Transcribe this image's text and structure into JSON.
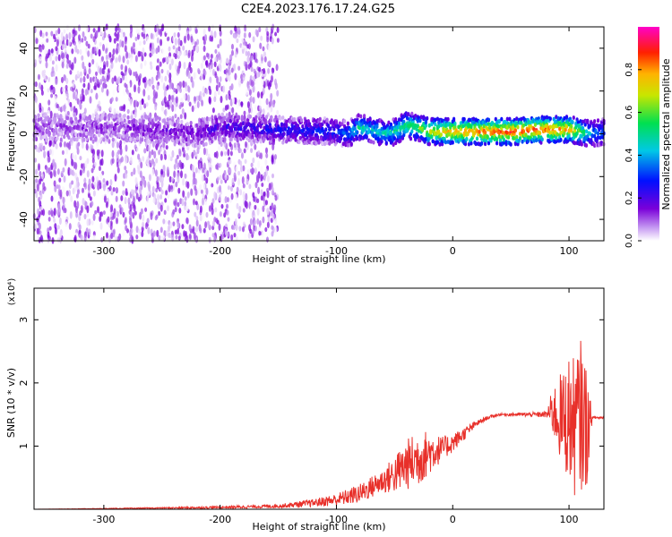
{
  "figure_title": "C2E4.2023.176.17.24.G25",
  "chart_data": [
    {
      "type": "heatmap",
      "xlabel": "Height of straight line (km)",
      "ylabel": "Frequency (Hz)",
      "xlim": [
        -360,
        130
      ],
      "ylim": [
        -50,
        50
      ],
      "x_ticks": [
        -300,
        -200,
        -100,
        0,
        100
      ],
      "y_ticks": [
        -40,
        -20,
        0,
        20,
        40
      ],
      "colorbar": {
        "label": "Normalized spectral amplitude",
        "range": [
          0,
          1
        ],
        "ticks": [
          "0.0",
          "0.2",
          "0.4",
          "0.6",
          "0.8"
        ],
        "ticks_values": [
          0,
          0.2,
          0.4,
          0.6,
          0.8
        ]
      },
      "ridge": {
        "x": [
          -360,
          -300,
          -250,
          -220,
          -200,
          -150,
          -100,
          -90,
          -80,
          -70,
          -60,
          -50,
          -40,
          -30,
          -20,
          0,
          50,
          80,
          100,
          110,
          120,
          130
        ],
        "freq": [
          3,
          3,
          2,
          0,
          3,
          2,
          1,
          0,
          3,
          2,
          0,
          1,
          4,
          3,
          1,
          1,
          1,
          2,
          2,
          1,
          0,
          1
        ],
        "amplitude": [
          0.1,
          0.12,
          0.15,
          0.15,
          0.2,
          0.25,
          0.3,
          0.35,
          0.5,
          0.45,
          0.45,
          0.5,
          0.55,
          0.6,
          0.7,
          0.8,
          0.9,
          0.88,
          0.8,
          0.6,
          0.4,
          0.35
        ]
      },
      "noise_region": [
        -360,
        -150
      ]
    },
    {
      "type": "line",
      "xlabel": "Height of straight line (km)",
      "ylabel": "SNR (10 * v/v)",
      "y_multiplier": "(x10⁴)",
      "xlim": [
        -360,
        130
      ],
      "ylim": [
        0,
        3.5
      ],
      "x_ticks": [
        -300,
        -200,
        -100,
        0,
        100
      ],
      "y_ticks": [
        1,
        2,
        3
      ],
      "series": [
        {
          "color": "#e8302a",
          "x": [
            -360,
            -300,
            -250,
            -200,
            -150,
            -120,
            -100,
            -80,
            -60,
            -50,
            -40,
            -30,
            -20,
            -10,
            0,
            10,
            20,
            30,
            40,
            60,
            80,
            85,
            90,
            95,
            100,
            105,
            110,
            115,
            120,
            130
          ],
          "y": [
            0.0,
            0.01,
            0.02,
            0.03,
            0.05,
            0.1,
            0.15,
            0.25,
            0.45,
            0.55,
            0.7,
            0.8,
            0.9,
            0.95,
            1.05,
            1.2,
            1.35,
            1.45,
            1.5,
            1.5,
            1.5,
            1.55,
            1.5,
            1.4,
            1.45,
            1.3,
            1.5,
            1.3,
            1.45,
            1.45
          ],
          "spread": [
            0.0,
            0.005,
            0.01,
            0.02,
            0.03,
            0.06,
            0.1,
            0.15,
            0.2,
            0.3,
            0.4,
            0.45,
            0.35,
            0.2,
            0.15,
            0.1,
            0.05,
            0.03,
            0.02,
            0.03,
            0.05,
            0.3,
            0.6,
            0.8,
            1.0,
            1.1,
            1.2,
            1.0,
            0.02,
            0.02
          ]
        }
      ]
    }
  ]
}
